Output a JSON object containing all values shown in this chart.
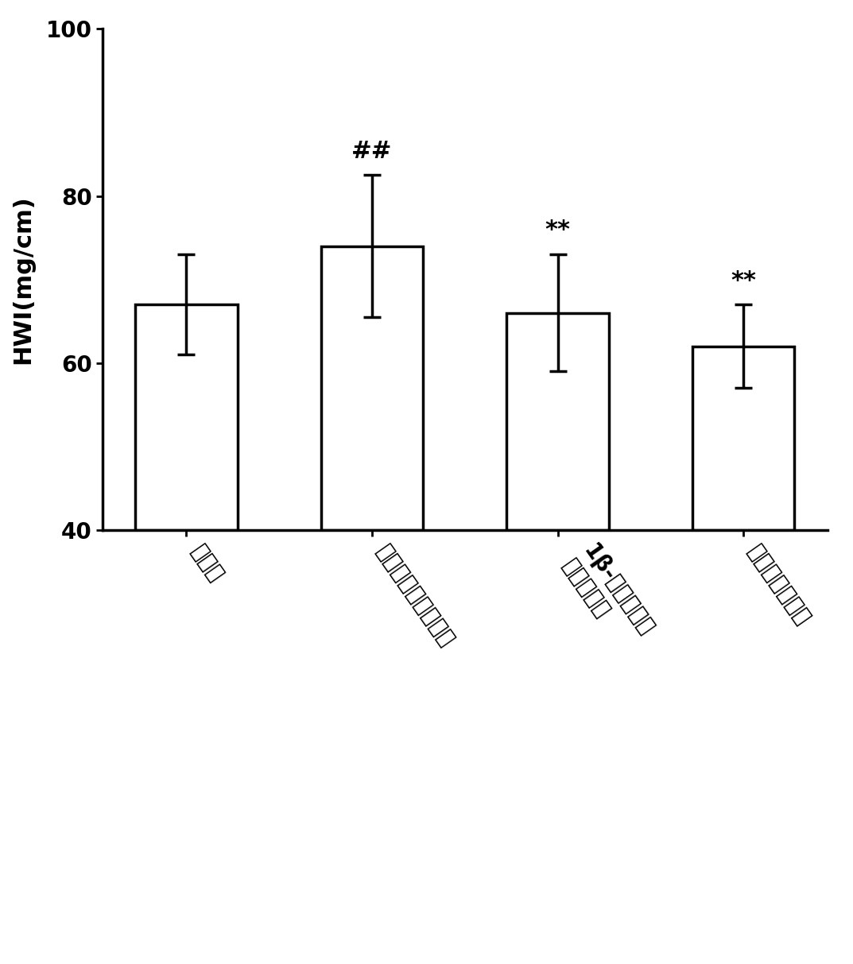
{
  "categories": [
    "对照组",
    "异丙肾上腺素模型组",
    "1β-羟基土木香\n内酯给药组",
    "福辛普利给药组"
  ],
  "values": [
    67.0,
    74.0,
    66.0,
    62.0
  ],
  "errors": [
    6.0,
    8.5,
    7.0,
    5.0
  ],
  "annotations": [
    "",
    "##",
    "**",
    "**"
  ],
  "bar_color": "#ffffff",
  "bar_edgecolor": "#000000",
  "bar_linewidth": 2.5,
  "ylabel": "HWI(mg/cm)",
  "ylim": [
    40,
    100
  ],
  "yticks": [
    40,
    60,
    80,
    100
  ],
  "annotation_fontsize": 22,
  "ylabel_fontsize": 22,
  "tick_fontsize": 20,
  "xlabel_rotation": -55,
  "xlabel_fontsize": 20,
  "bar_width": 0.55,
  "errorbar_capsize": 8,
  "errorbar_linewidth": 2.5,
  "errorbar_capthick": 2.5,
  "background_color": "#ffffff"
}
